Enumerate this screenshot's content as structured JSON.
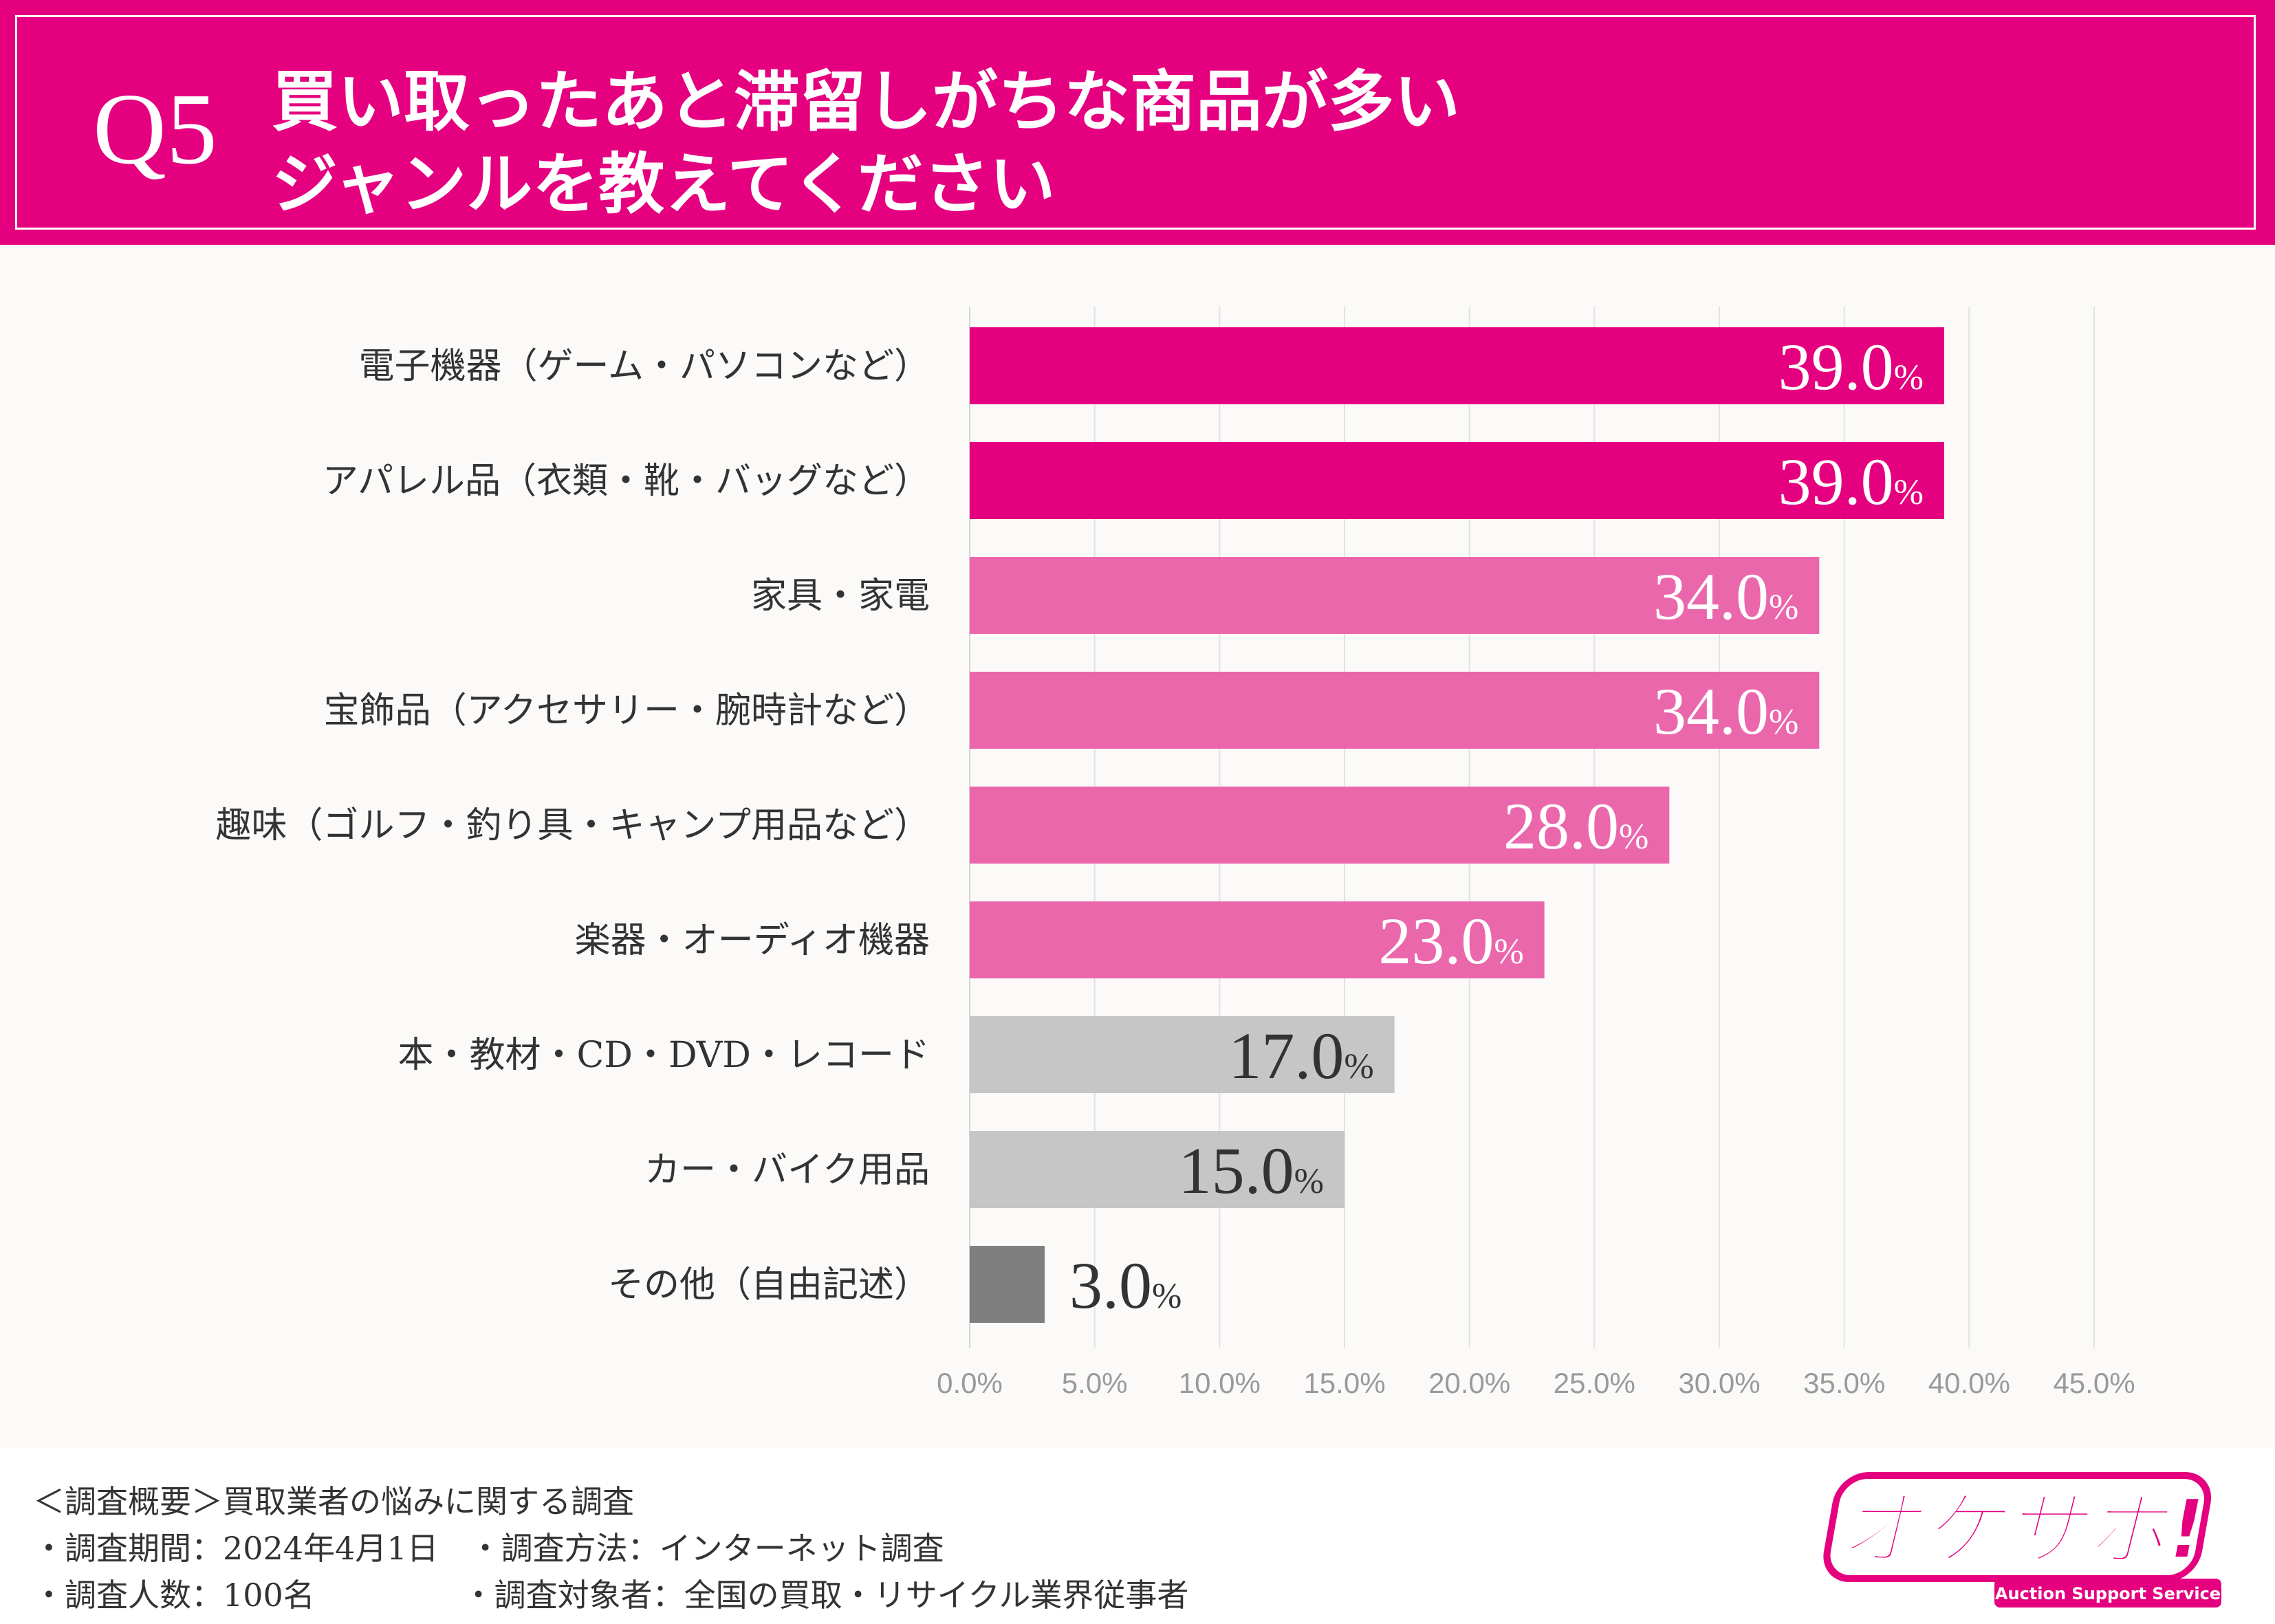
{
  "header": {
    "q_label": "Q5",
    "title_line_1": "買い取ったあと滞留しがちな商品が多い",
    "title_line_2": "ジャンルを教えてください"
  },
  "chart_data": {
    "type": "bar",
    "orientation": "horizontal",
    "title": "買い取ったあと滞留しがちな商品が多いジャンルを教えてください",
    "categories": [
      "電子機器（ゲーム・パソコンなど）",
      "アパレル品（衣類・靴・バッグなど）",
      "家具・家電",
      "宝飾品（アクセサリー・腕時計など）",
      "趣味（ゴルフ・釣り具・キャンプ用品など）",
      "楽器・オーディオ機器",
      "本・教材・CD・DVD・レコード",
      "カー・バイク用品",
      "その他（自由記述）"
    ],
    "values": [
      39.0,
      39.0,
      34.0,
      34.0,
      28.0,
      23.0,
      17.0,
      15.0,
      3.0
    ],
    "value_labels": [
      "39.0",
      "39.0",
      "34.0",
      "34.0",
      "28.0",
      "23.0",
      "17.0",
      "15.0",
      "3.0"
    ],
    "value_suffix": "%",
    "bar_colors": [
      "#e4007f",
      "#e4007f",
      "#eb67ac",
      "#eb67ac",
      "#eb67ac",
      "#eb67ac",
      "#c6c6c6",
      "#c6c6c6",
      "#7f7f7f"
    ],
    "label_colors": [
      "#ffffff",
      "#ffffff",
      "#ffffff",
      "#ffffff",
      "#ffffff",
      "#ffffff",
      "#333333",
      "#333333",
      "#333333"
    ],
    "label_inside": [
      true,
      true,
      true,
      true,
      true,
      true,
      true,
      true,
      false
    ],
    "xlim": [
      0,
      45
    ],
    "xticks": [
      0,
      5,
      10,
      15,
      20,
      25,
      30,
      35,
      40,
      45
    ],
    "xtick_labels": [
      "0.0%",
      "5.0%",
      "10.0%",
      "15.0%",
      "20.0%",
      "25.0%",
      "30.0%",
      "35.0%",
      "40.0%",
      "45.0%"
    ],
    "grid": true,
    "xlabel": "",
    "ylabel": ""
  },
  "footer": {
    "overview": "＜調査概要＞買取業者の悩みに関する調査",
    "period": "・調査期間：2024年4月1日",
    "method": "・調査方法：インターネット調査",
    "count": "・調査人数：100名",
    "target": "・調査対象者：全国の買取・リサイクル業界従事者"
  },
  "logo": {
    "text": "オケサポ!",
    "subtitle": "Auction Support Service"
  },
  "colors": {
    "brand": "#e4007f",
    "light_bar": "#eb67ac",
    "gray_bar": "#c6c6c6",
    "dark_gray_bar": "#7f7f7f",
    "chart_bg": "#fbfaf8"
  }
}
